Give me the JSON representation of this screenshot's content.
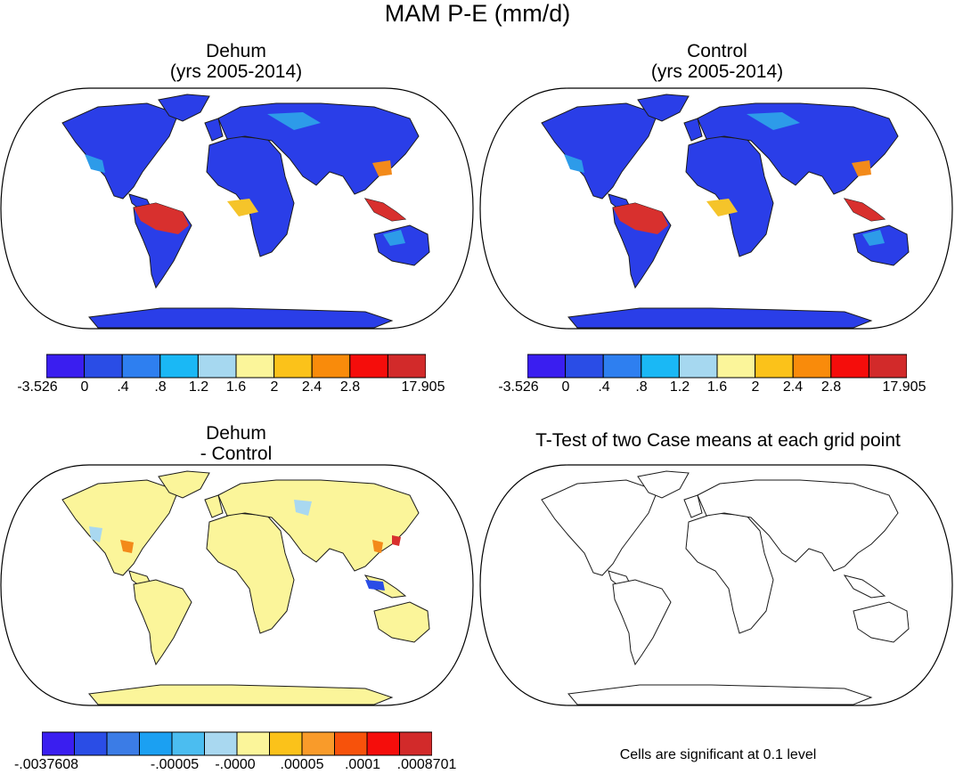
{
  "title": "MAM P-E (mm/d)",
  "panels": [
    {
      "id": "dehum",
      "title_line1": "Dehum",
      "title_line2": "(yrs 2005-2014)"
    },
    {
      "id": "control",
      "title_line1": "Control",
      "title_line2": "(yrs 2005-2014)"
    },
    {
      "id": "diff",
      "title_line1": "Dehum",
      "title_line2": "- Control"
    },
    {
      "id": "ttest",
      "title_line1": "T-Test of two Case means at each grid point"
    }
  ],
  "colorbar_main": {
    "colors": [
      "#3a1ef0",
      "#2a4de6",
      "#2e7ff0",
      "#1ab8f5",
      "#a6d8f0",
      "#fbf59a",
      "#fbc21a",
      "#f98b0b",
      "#f50d0b",
      "#d22a2a"
    ],
    "labels": [
      "-3.526",
      "0",
      ".4",
      ".8",
      "1.2",
      "1.6",
      "2",
      "2.4",
      "2.8",
      "17.905"
    ]
  },
  "colorbar_diff": {
    "colors": [
      "#3a1ef0",
      "#2a4de6",
      "#3b7ce6",
      "#1ba0f2",
      "#4bbdf0",
      "#a9d8f0",
      "#fbf59a",
      "#fbc21a",
      "#f99b2a",
      "#f7520b",
      "#f50d0b",
      "#d22a2a"
    ],
    "labels": [
      "-.0037608",
      "-.00005",
      "-.0000",
      ".00005",
      ".0001",
      ".0008701"
    ]
  },
  "footnote": "Cells are significant at 0.1 level"
}
